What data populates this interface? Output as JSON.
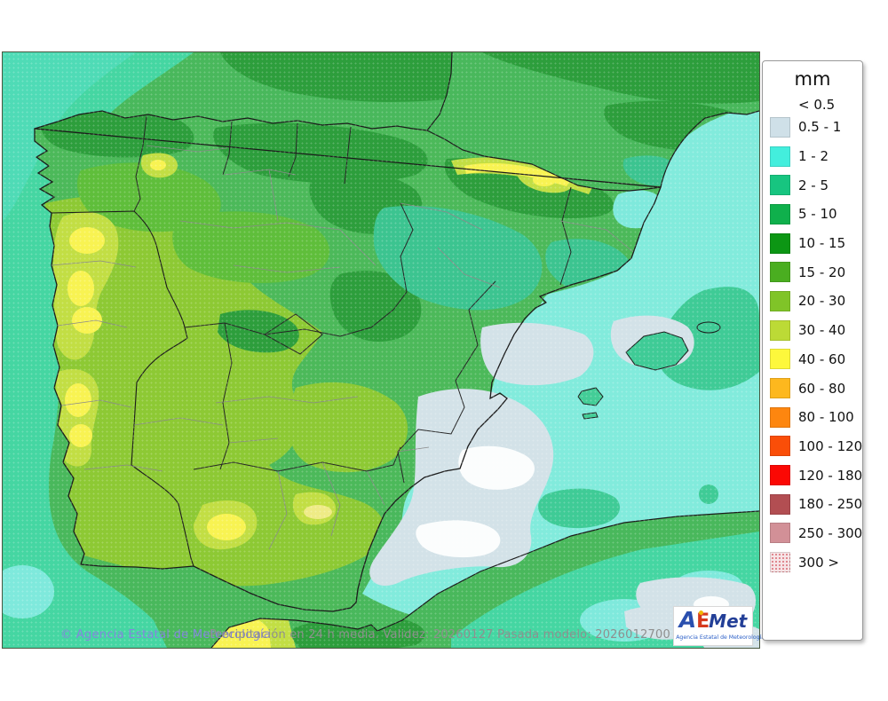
{
  "page": {
    "background": "#ffffff"
  },
  "map": {
    "region": "Iberian Peninsula, Balearic Islands, southern France and northern Africa",
    "field": "24-hour mean precipitation (mm)",
    "credit": "© Agencia Estatal de Meteorología",
    "caption": "Precipitación en 24 h media. Validez: 20260127 Pasada modelo: 2026012700",
    "palette": {
      "sea_teal": "#45d6a2",
      "sea_cyan": "#82ebdc",
      "land_green_5_10": "#4cb95a",
      "dark_green_10_15": "#2d9e3c",
      "green_15_20": "#5fbe3b",
      "yellow_green_20_30": "#8dc934",
      "lime_30_40": "#c2de44",
      "yellow_40_60": "#f8f352",
      "teal_2_5": "#3cc490",
      "cyan_1_2": "#7fe9dc",
      "grey_05_1": "#d3e2e8",
      "white_lt_05": "#fbfdfd"
    }
  },
  "legend": {
    "title": "mm",
    "below_threshold_label": "< 0.5",
    "items": [
      {
        "label": "0.5 - 1",
        "color": "#cfe0e8"
      },
      {
        "label": "1 - 2",
        "color": "#43eedd"
      },
      {
        "label": "2 - 5",
        "color": "#17c580"
      },
      {
        "label": "5 - 10",
        "color": "#0fb04c"
      },
      {
        "label": "10 - 15",
        "color": "#0c9614"
      },
      {
        "label": "15 - 20",
        "color": "#4aae20"
      },
      {
        "label": "20 - 30",
        "color": "#80c428"
      },
      {
        "label": "30 - 40",
        "color": "#bcda36"
      },
      {
        "label": "40 - 60",
        "color": "#fdf83c"
      },
      {
        "label": "60 - 80",
        "color": "#fdb81e"
      },
      {
        "label": "80 - 100",
        "color": "#fd860f"
      },
      {
        "label": "100 - 120",
        "color": "#fa4e08"
      },
      {
        "label": "120 - 180",
        "color": "#fb0804"
      },
      {
        "label": "180 - 250",
        "color": "#b24e52"
      },
      {
        "label": "250 - 300",
        "color": "#d29097"
      },
      {
        "label": "300 >",
        "color": "#f6e4e6",
        "speckled": true
      }
    ]
  },
  "logo": {
    "a": "A",
    "e": "E",
    "met": "Met",
    "caption": "Agencia Estatal de Meteorología"
  }
}
